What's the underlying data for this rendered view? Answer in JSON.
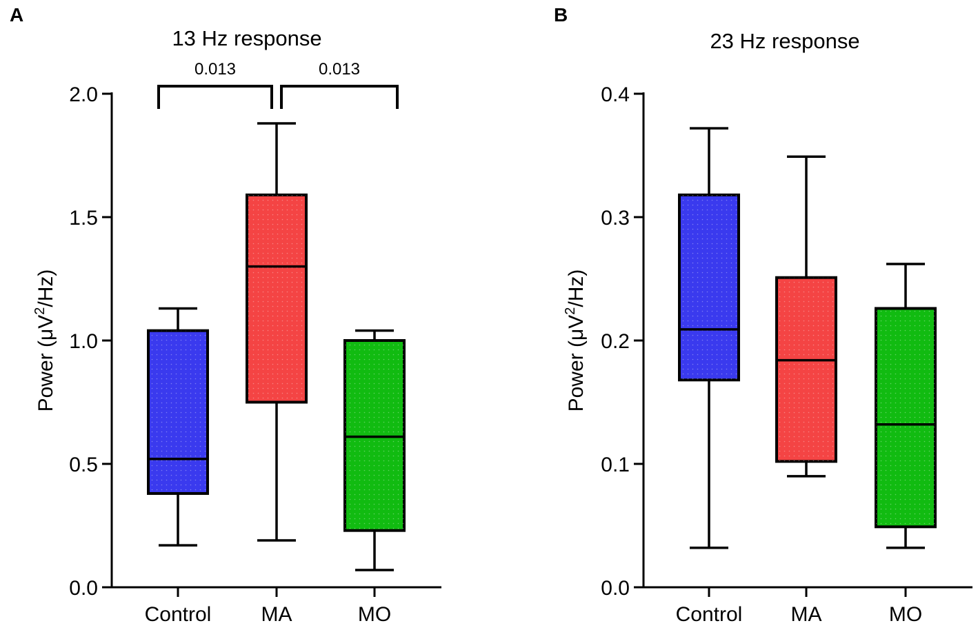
{
  "panels": [
    {
      "label": "A"
    },
    {
      "label": "B"
    }
  ],
  "colors": {
    "Control": "#3a3aee",
    "MA": "#f44444",
    "MO": "#11bb11",
    "stroke": "#000000"
  },
  "chart_data": [
    {
      "type": "box",
      "panel": "A",
      "title": "13 Hz response",
      "ylabel": "Power (μV²/Hz)",
      "ylabel_parts": {
        "prefix": "Power (μV",
        "sup": "2",
        "suffix": "/Hz)"
      },
      "ylim": [
        0,
        2.0
      ],
      "yticks": [
        0.0,
        0.5,
        1.0,
        1.5,
        2.0
      ],
      "ytick_labels": [
        "0.0",
        "0.5",
        "1.0",
        "1.5",
        "2.0"
      ],
      "categories": [
        "Control",
        "MA",
        "MO"
      ],
      "boxes": [
        {
          "name": "Control",
          "min": 0.17,
          "q1": 0.38,
          "median": 0.52,
          "q3": 1.04,
          "max": 1.13
        },
        {
          "name": "MA",
          "min": 0.19,
          "q1": 0.75,
          "median": 1.3,
          "q3": 1.59,
          "max": 1.88
        },
        {
          "name": "MO",
          "min": 0.07,
          "q1": 0.23,
          "median": 0.61,
          "q3": 1.0,
          "max": 1.04
        }
      ],
      "significance": [
        {
          "from": "Control",
          "to": "MA",
          "label": "0.013"
        },
        {
          "from": "MA",
          "to": "MO",
          "label": "0.013"
        }
      ]
    },
    {
      "type": "box",
      "panel": "B",
      "title": "23 Hz response",
      "ylabel": "Power (μV²/Hz)",
      "ylabel_parts": {
        "prefix": "Power (μV",
        "sup": "2",
        "suffix": "/Hz)"
      },
      "ylim": [
        0,
        0.4
      ],
      "yticks": [
        0.0,
        0.1,
        0.2,
        0.3,
        0.4
      ],
      "ytick_labels": [
        "0.0",
        "0.1",
        "0.2",
        "0.3",
        "0.4"
      ],
      "categories": [
        "Control",
        "MA",
        "MO"
      ],
      "boxes": [
        {
          "name": "Control",
          "min": 0.032,
          "q1": 0.168,
          "median": 0.209,
          "q3": 0.318,
          "max": 0.372
        },
        {
          "name": "MA",
          "min": 0.09,
          "q1": 0.102,
          "median": 0.184,
          "q3": 0.251,
          "max": 0.349
        },
        {
          "name": "MO",
          "min": 0.032,
          "q1": 0.049,
          "median": 0.132,
          "q3": 0.226,
          "max": 0.262
        }
      ],
      "significance": []
    }
  ]
}
